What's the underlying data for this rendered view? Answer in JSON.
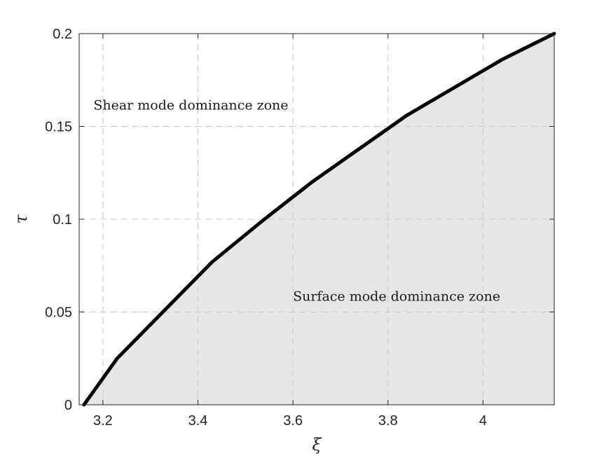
{
  "chart_data": {
    "type": "area",
    "title": "",
    "xlabel": "ξ",
    "ylabel": "τ",
    "xlim": [
      3.15,
      4.15
    ],
    "ylim": [
      0,
      0.2
    ],
    "xticks": [
      3.2,
      3.4,
      3.6,
      3.8,
      4.0
    ],
    "xtick_labels": [
      "3.2",
      "3.4",
      "3.6",
      "3.8",
      "4"
    ],
    "yticks": [
      0,
      0.05,
      0.1,
      0.15,
      0.2
    ],
    "ytick_labels": [
      "0",
      "0.05",
      "0.1",
      "0.15",
      "0.2"
    ],
    "grid": true,
    "legend": "none",
    "series": [
      {
        "color": "#000000",
        "fill": "#e6e6e6",
        "x": [
          3.16,
          3.23,
          3.33,
          3.43,
          3.54,
          3.64,
          3.74,
          3.84,
          3.94,
          4.04,
          4.15
        ],
        "y": [
          0,
          0.025,
          0.051,
          0.077,
          0.1,
          0.12,
          0.138,
          0.156,
          0.171,
          0.186,
          0.2
        ]
      }
    ],
    "annotations": [
      {
        "text": "Shear mode dominance zone",
        "x": 3.18,
        "y": 0.159
      },
      {
        "text": "Surface mode dominance zone",
        "x": 3.6,
        "y": 0.056
      }
    ]
  }
}
